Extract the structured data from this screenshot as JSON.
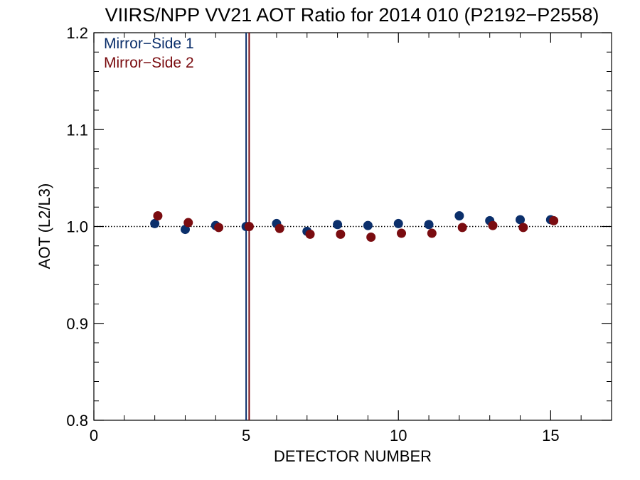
{
  "chart_data": {
    "type": "scatter",
    "title": "VIIRS/NPP VV21 AOT Ratio for 2014 010 (P2192−P2558)",
    "xlabel": "DETECTOR NUMBER",
    "ylabel": "AOT (L2/L3)",
    "xlim": [
      0,
      17
    ],
    "ylim": [
      0.8,
      1.2
    ],
    "x_ticks": [
      0,
      5,
      10,
      15
    ],
    "x_tick_labels": [
      "0",
      "5",
      "10",
      "15"
    ],
    "y_ticks": [
      0.8,
      0.9,
      1.0,
      1.1,
      1.2
    ],
    "y_tick_labels": [
      "0.8",
      "0.9",
      "1.0",
      "1.1",
      "1.2"
    ],
    "reference_line": 1.0,
    "vertical_markers": [
      {
        "x": 5.0,
        "color": "#0b2f6b"
      },
      {
        "x": 5.1,
        "color": "#7a0c10"
      }
    ],
    "legend_position": "top-left",
    "series": [
      {
        "name": "Mirror−Side 1",
        "color": "#0b2f6b",
        "x": [
          2,
          3,
          4,
          5,
          6,
          7,
          8,
          9,
          10,
          11,
          12,
          13,
          14,
          15
        ],
        "y": [
          1.003,
          0.997,
          1.001,
          1.0,
          1.003,
          0.995,
          1.002,
          1.001,
          1.003,
          1.002,
          1.011,
          1.006,
          1.007,
          1.007
        ]
      },
      {
        "name": "Mirror−Side 2",
        "color": "#7a0c10",
        "x": [
          2.1,
          3.1,
          4.1,
          5.1,
          6.1,
          7.1,
          8.1,
          9.1,
          10.1,
          11.1,
          12.1,
          13.1,
          14.1,
          15.1
        ],
        "y": [
          1.011,
          1.004,
          0.999,
          1.0,
          0.998,
          0.992,
          0.992,
          0.989,
          0.993,
          0.993,
          0.999,
          1.001,
          0.999,
          1.006
        ]
      }
    ]
  }
}
